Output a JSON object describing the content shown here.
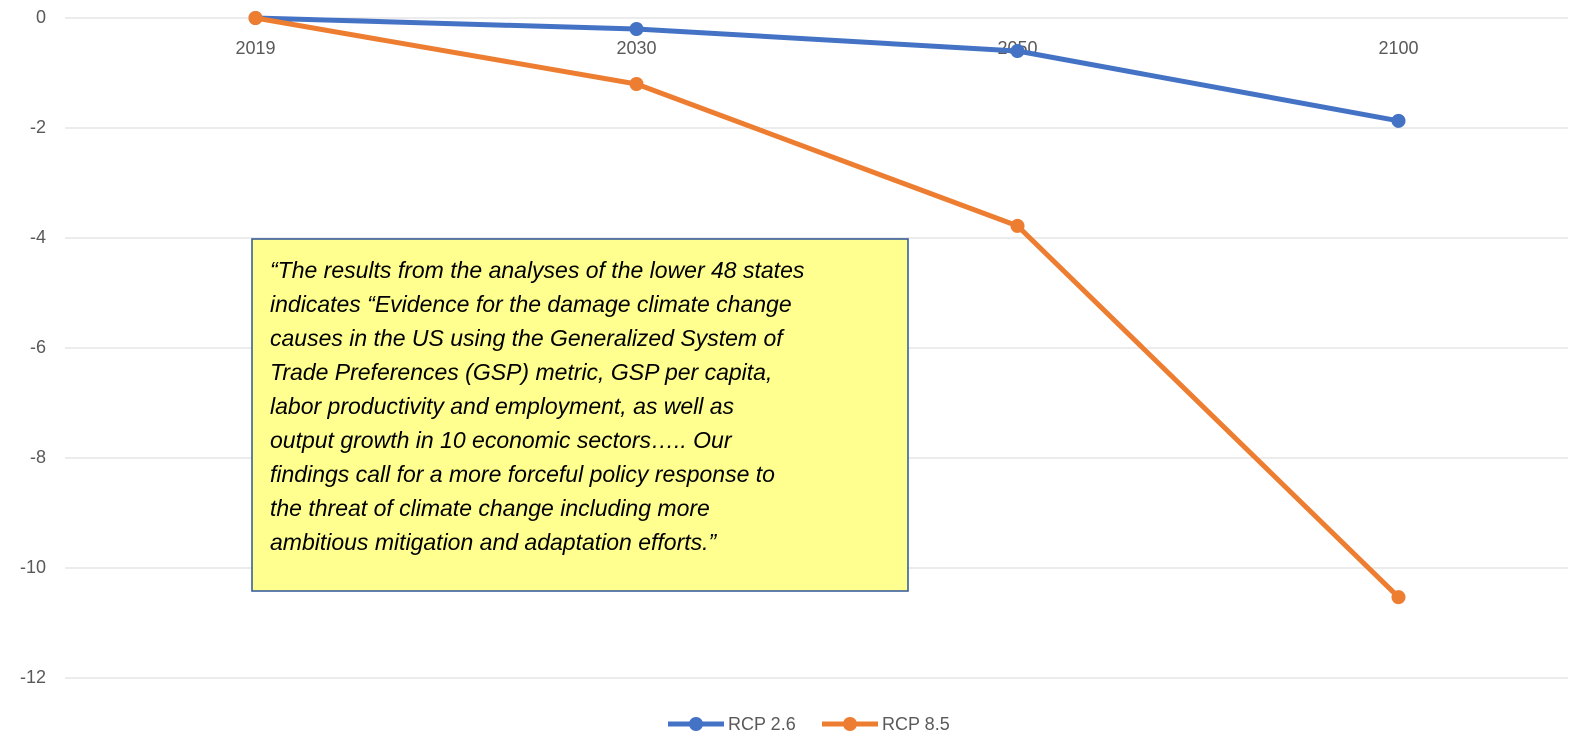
{
  "chart_data": {
    "type": "line",
    "categories": [
      "2019",
      "2030",
      "2050",
      "2100"
    ],
    "series": [
      {
        "name": "RCP 2.6",
        "color": "#4472c4",
        "values": [
          0,
          -0.2,
          -0.6,
          -1.87
        ]
      },
      {
        "name": "RCP 8.5",
        "color": "#ed7d31",
        "values": [
          0,
          -1.2,
          -3.78,
          -10.53
        ]
      }
    ],
    "ylim": [
      -12,
      0
    ],
    "yticks": [
      0,
      -2,
      -4,
      -6,
      -8,
      -10,
      -12
    ],
    "grid": true,
    "legend": "bottom",
    "annotation": [
      "“The results from the analyses of the lower 48 states",
      "indicates “Evidence for the damage climate change",
      "causes in the US using the Generalized System of",
      "Trade Preferences (GSP) metric, GSP per capita,",
      "labor productivity and employment, as well as",
      "output growth in 10 economic sectors….. Our",
      "findings call for a more forceful policy response to",
      "the threat of climate change including more",
      "ambitious mitigation and adaptation efforts.”"
    ]
  }
}
